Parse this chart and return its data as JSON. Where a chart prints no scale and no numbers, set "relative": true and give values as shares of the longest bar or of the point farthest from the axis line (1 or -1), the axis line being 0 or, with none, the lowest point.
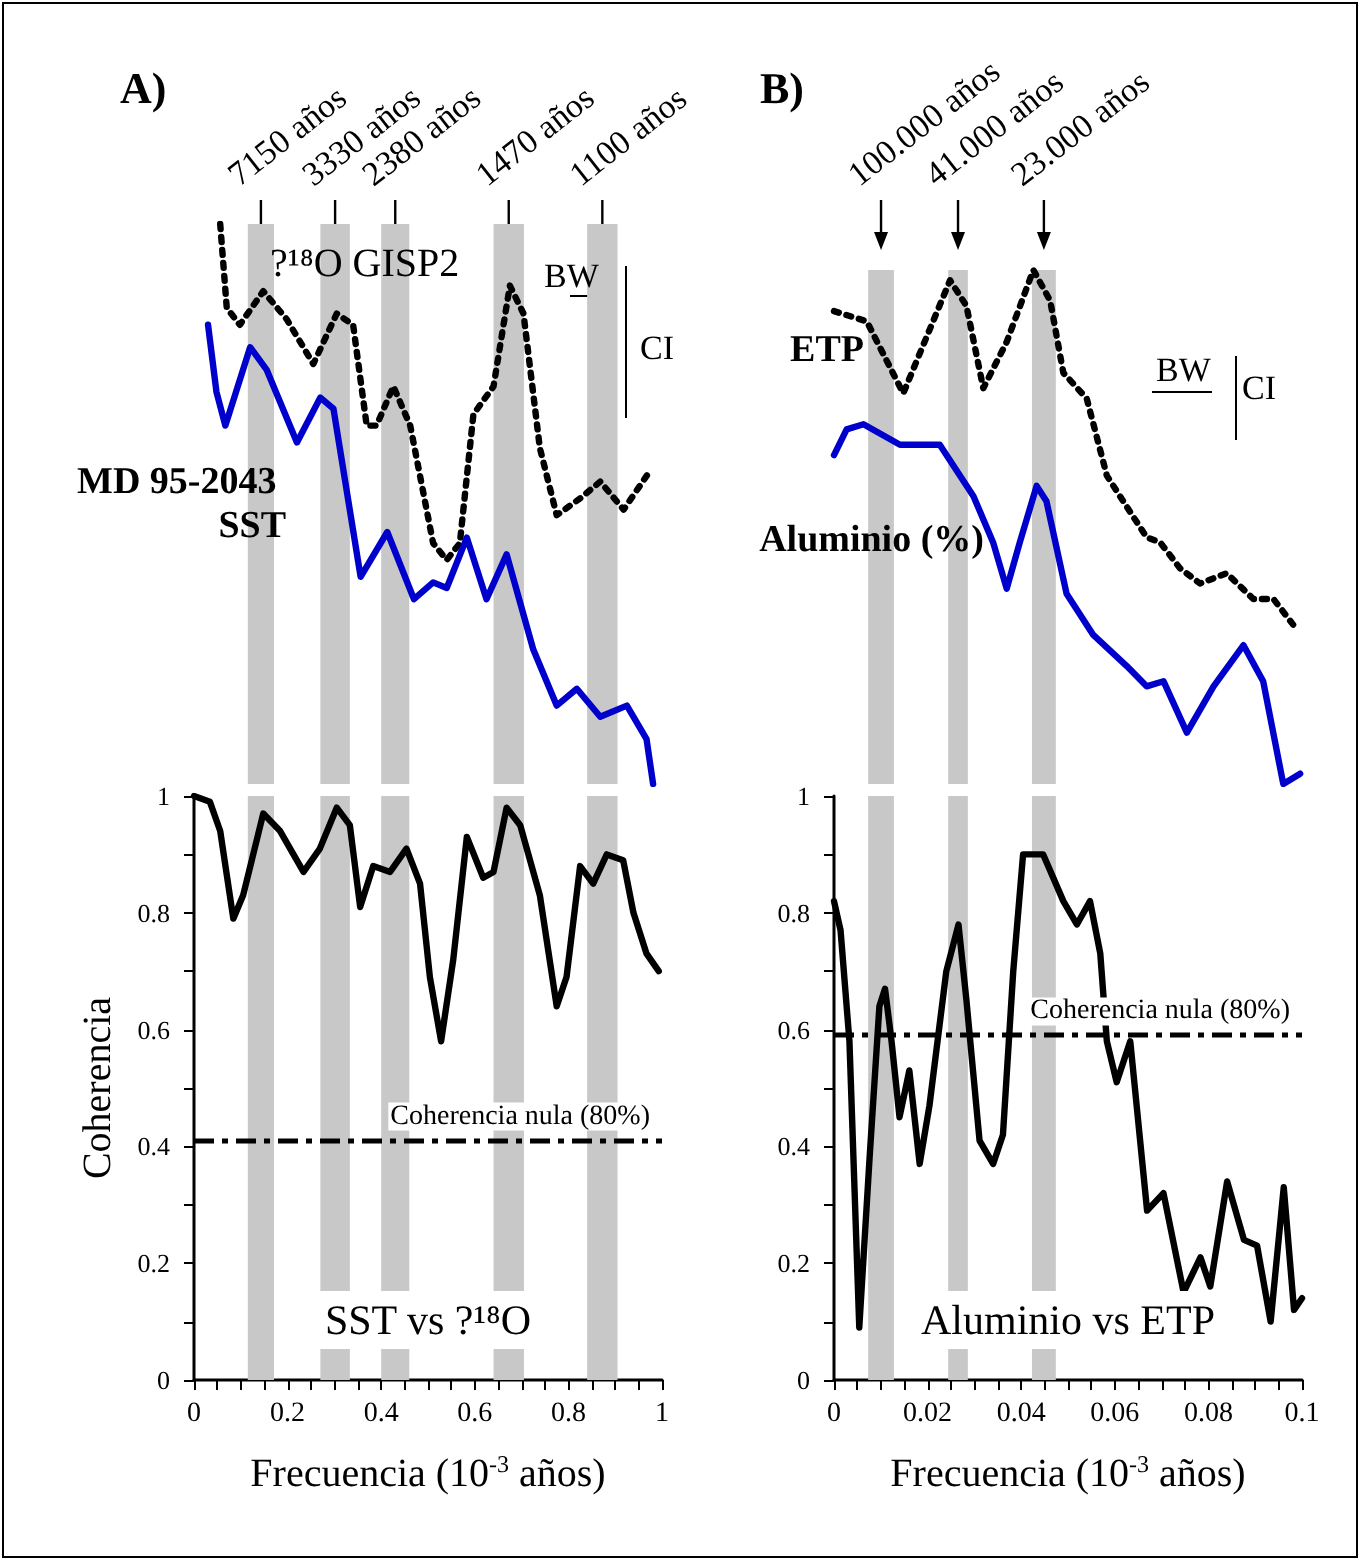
{
  "chart_data": [
    {
      "type": "line",
      "title": "A)",
      "relative": true,
      "xlim": [
        0,
        1
      ],
      "tick_labels": false,
      "marker": "none",
      "series": [
        {
          "name": "?¹⁸O GISP2",
          "color": "#000000",
          "line_style": "dotted",
          "x": [
            0.056,
            0.07,
            0.098,
            0.148,
            0.198,
            0.255,
            0.305,
            0.34,
            0.369,
            0.39,
            0.426,
            0.462,
            0.511,
            0.54,
            0.568,
            0.597,
            0.64,
            0.675,
            0.704,
            0.739,
            0.775,
            0.825,
            0.868,
            0.918,
            0.975
          ],
          "values": [
            1.0,
            0.85,
            0.82,
            0.88,
            0.83,
            0.75,
            0.84,
            0.82,
            0.64,
            0.64,
            0.71,
            0.64,
            0.43,
            0.4,
            0.43,
            0.66,
            0.71,
            0.89,
            0.84,
            0.6,
            0.48,
            0.51,
            0.54,
            0.49,
            0.56
          ]
        },
        {
          "name": "MD 95-2043 SST",
          "color": "#0000cc",
          "x": [
            0.03,
            0.048,
            0.067,
            0.12,
            0.155,
            0.22,
            0.27,
            0.298,
            0.356,
            0.413,
            0.47,
            0.511,
            0.54,
            0.583,
            0.625,
            0.668,
            0.725,
            0.775,
            0.818,
            0.868,
            0.925,
            0.967,
            0.981
          ],
          "values": [
            0.82,
            0.7,
            0.64,
            0.78,
            0.74,
            0.61,
            0.69,
            0.67,
            0.37,
            0.45,
            0.33,
            0.36,
            0.35,
            0.44,
            0.33,
            0.41,
            0.24,
            0.14,
            0.17,
            0.12,
            0.14,
            0.08,
            0.0
          ]
        }
      ],
      "bands": [
        {
          "axis": "x",
          "from": 0.115,
          "to": 0.171,
          "label": "7150 años",
          "color": "#c8c8c8"
        },
        {
          "axis": "x",
          "from": 0.27,
          "to": 0.333,
          "label": "3330 años",
          "color": "#c8c8c8"
        },
        {
          "axis": "x",
          "from": 0.4,
          "to": 0.46,
          "label": "2380 años",
          "color": "#c8c8c8"
        },
        {
          "axis": "x",
          "from": 0.64,
          "to": 0.705,
          "label": "1470 años",
          "color": "#c8c8c8"
        },
        {
          "axis": "x",
          "from": 0.84,
          "to": 0.905,
          "label": "1100 años",
          "color": "#c8c8c8"
        }
      ],
      "annotations": [
        "BW",
        "CI"
      ]
    },
    {
      "type": "line",
      "xlabel": "Frecuencia (10$^{-3}$ años)",
      "ylabel": "Coherencia",
      "xlim": [
        0,
        1
      ],
      "ylim": [
        0,
        1
      ],
      "marker": "none",
      "xticks": [
        0,
        {
          "value": 0.05,
          "label": null
        },
        {
          "value": 0.1,
          "label": null
        },
        {
          "value": 0.15,
          "label": null
        },
        0.2,
        {
          "value": 0.25,
          "label": null
        },
        {
          "value": 0.3,
          "label": null
        },
        {
          "value": 0.35,
          "label": null
        },
        0.4,
        {
          "value": 0.45,
          "label": null
        },
        {
          "value": 0.5,
          "label": null
        },
        {
          "value": 0.55,
          "label": null
        },
        0.6,
        {
          "value": 0.65,
          "label": null
        },
        {
          "value": 0.7,
          "label": null
        },
        {
          "value": 0.75,
          "label": null
        },
        0.8,
        {
          "value": 0.85,
          "label": null
        },
        {
          "value": 0.9,
          "label": null
        },
        {
          "value": 0.95,
          "label": null
        },
        1
      ],
      "yticks": [
        0,
        {
          "value": 0.1,
          "label": null
        },
        0.2,
        {
          "value": 0.3,
          "label": null
        },
        0.4,
        {
          "value": 0.5,
          "label": null
        },
        0.6,
        {
          "value": 0.7,
          "label": null
        },
        0.8,
        {
          "value": 0.9,
          "label": null
        },
        1
      ],
      "series": [
        {
          "color": "#000000",
          "x": [
            0,
            0.034,
            0.056,
            0.084,
            0.105,
            0.148,
            0.184,
            0.234,
            0.269,
            0.305,
            0.333,
            0.355,
            0.383,
            0.419,
            0.454,
            0.483,
            0.504,
            0.528,
            0.554,
            0.583,
            0.618,
            0.64,
            0.668,
            0.697,
            0.739,
            0.775,
            0.796,
            0.825,
            0.853,
            0.882,
            0.917,
            0.939,
            0.967,
            0.993
          ],
          "values": [
            1.0,
            0.99,
            0.94,
            0.79,
            0.83,
            0.97,
            0.94,
            0.87,
            0.91,
            0.98,
            0.95,
            0.81,
            0.88,
            0.87,
            0.91,
            0.85,
            0.69,
            0.58,
            0.72,
            0.93,
            0.86,
            0.87,
            0.98,
            0.95,
            0.83,
            0.64,
            0.69,
            0.88,
            0.85,
            0.9,
            0.89,
            0.8,
            0.73,
            0.7
          ]
        }
      ],
      "ref_lines": [
        {
          "axis": "y",
          "value": 0.41,
          "label": "Coherencia nula (80%)",
          "line_style": "dashed",
          "color": "#000000"
        }
      ],
      "bands": [
        {
          "axis": "x",
          "from": 0.115,
          "to": 0.171,
          "color": "#c8c8c8"
        },
        {
          "axis": "x",
          "from": 0.27,
          "to": 0.333,
          "color": "#c8c8c8"
        },
        {
          "axis": "x",
          "from": 0.4,
          "to": 0.46,
          "color": "#c8c8c8"
        },
        {
          "axis": "x",
          "from": 0.64,
          "to": 0.705,
          "color": "#c8c8c8"
        },
        {
          "axis": "x",
          "from": 0.84,
          "to": 0.905,
          "color": "#c8c8c8"
        }
      ],
      "annotations": [
        "SST vs ?¹⁸O"
      ]
    },
    {
      "type": "line",
      "title": "B)",
      "relative": true,
      "xlim": [
        0,
        0.1
      ],
      "tick_labels": false,
      "marker": "none",
      "series": [
        {
          "name": "ETP",
          "color": "#000000",
          "line_style": "dotted",
          "x": [
            0.0,
            0.007,
            0.0148,
            0.0198,
            0.0248,
            0.0283,
            0.0319,
            0.0369,
            0.0426,
            0.0462,
            0.049,
            0.054,
            0.0583,
            0.0611,
            0.0668,
            0.0697,
            0.0739,
            0.0782,
            0.0839,
            0.0896,
            0.0939,
            0.0981
          ],
          "values": [
            0.92,
            0.9,
            0.76,
            0.87,
            0.98,
            0.93,
            0.77,
            0.86,
            1.0,
            0.94,
            0.8,
            0.75,
            0.6,
            0.56,
            0.48,
            0.47,
            0.42,
            0.39,
            0.41,
            0.36,
            0.36,
            0.31
          ]
        },
        {
          "name": "Aluminio (%)",
          "color": "#0000cc",
          "x": [
            0.0,
            0.0027,
            0.0063,
            0.0141,
            0.0226,
            0.0298,
            0.034,
            0.0369,
            0.0397,
            0.0433,
            0.0454,
            0.0497,
            0.0554,
            0.0625,
            0.0668,
            0.0704,
            0.0754,
            0.0811,
            0.0875,
            0.0917,
            0.096,
            0.0996
          ],
          "values": [
            0.64,
            0.69,
            0.7,
            0.66,
            0.66,
            0.56,
            0.47,
            0.38,
            0.47,
            0.58,
            0.55,
            0.37,
            0.29,
            0.23,
            0.19,
            0.2,
            0.1,
            0.19,
            0.27,
            0.2,
            0.0,
            0.02
          ]
        }
      ],
      "bands": [
        {
          "axis": "x",
          "from": 0.0073,
          "to": 0.0128,
          "label": "100.000 años",
          "color": "#c8c8c8"
        },
        {
          "axis": "x",
          "from": 0.0244,
          "to": 0.0286,
          "label": "41.000 años",
          "color": "#c8c8c8"
        },
        {
          "axis": "x",
          "from": 0.0423,
          "to": 0.0474,
          "label": "23.000 años",
          "color": "#c8c8c8"
        }
      ],
      "annotations": [
        "BW",
        "CI"
      ]
    },
    {
      "type": "line",
      "xlabel": "Frecuencia (10$^{-3}$ años)",
      "xlim": [
        0,
        0.1
      ],
      "ylim": [
        0,
        1
      ],
      "marker": "none",
      "xticks": [
        0,
        {
          "value": 0.005,
          "label": null
        },
        {
          "value": 0.01,
          "label": null
        },
        {
          "value": 0.015,
          "label": null
        },
        0.02,
        {
          "value": 0.025,
          "label": null
        },
        {
          "value": 0.03,
          "label": null
        },
        {
          "value": 0.035,
          "label": null
        },
        0.04,
        {
          "value": 0.045,
          "label": null
        },
        {
          "value": 0.05,
          "label": null
        },
        {
          "value": 0.055,
          "label": null
        },
        0.06,
        {
          "value": 0.065,
          "label": null
        },
        {
          "value": 0.07,
          "label": null
        },
        {
          "value": 0.075,
          "label": null
        },
        0.08,
        {
          "value": 0.085,
          "label": null
        },
        {
          "value": 0.09,
          "label": null
        },
        {
          "value": 0.095,
          "label": null
        },
        0.1
      ],
      "yticks": [
        0,
        {
          "value": 0.1,
          "label": null
        },
        0.2,
        {
          "value": 0.3,
          "label": null
        },
        0.4,
        {
          "value": 0.5,
          "label": null
        },
        0.6,
        {
          "value": 0.7,
          "label": null
        },
        0.8,
        {
          "value": 0.9,
          "label": null
        },
        1
      ],
      "series": [
        {
          "color": "#000000",
          "x": [
            0,
            0.0014,
            0.0033,
            0.0054,
            0.0076,
            0.0097,
            0.0109,
            0.0123,
            0.014,
            0.0161,
            0.0183,
            0.0204,
            0.024,
            0.0266,
            0.0283,
            0.0311,
            0.034,
            0.0361,
            0.0383,
            0.0404,
            0.0447,
            0.049,
            0.0519,
            0.0547,
            0.0569,
            0.0583,
            0.0604,
            0.0633,
            0.0669,
            0.0704,
            0.0747,
            0.0783,
            0.0804,
            0.084,
            0.0876,
            0.0904,
            0.0933,
            0.0961,
            0.0983,
            0.1
          ],
          "values": [
            0.82,
            0.77,
            0.58,
            0.09,
            0.38,
            0.64,
            0.67,
            0.58,
            0.45,
            0.53,
            0.37,
            0.47,
            0.7,
            0.78,
            0.65,
            0.41,
            0.37,
            0.42,
            0.7,
            0.9,
            0.9,
            0.82,
            0.78,
            0.82,
            0.73,
            0.58,
            0.51,
            0.58,
            0.29,
            0.32,
            0.15,
            0.21,
            0.16,
            0.34,
            0.24,
            0.23,
            0.1,
            0.33,
            0.12,
            0.14
          ]
        }
      ],
      "ref_lines": [
        {
          "axis": "y",
          "value": 0.59,
          "label": "Coherencia nula (80%)",
          "line_style": "dashed",
          "color": "#000000"
        }
      ],
      "bands": [
        {
          "axis": "x",
          "from": 0.0073,
          "to": 0.0128,
          "color": "#c8c8c8"
        },
        {
          "axis": "x",
          "from": 0.0244,
          "to": 0.0286,
          "color": "#c8c8c8"
        },
        {
          "axis": "x",
          "from": 0.0423,
          "to": 0.0474,
          "color": "#c8c8c8"
        }
      ],
      "annotations": [
        "Aluminio vs ETP"
      ]
    }
  ]
}
